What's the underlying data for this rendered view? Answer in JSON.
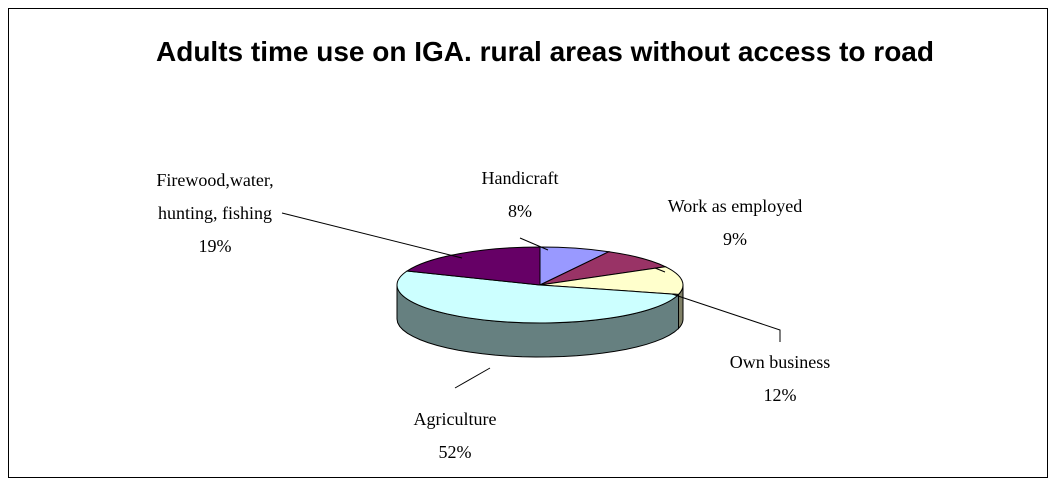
{
  "chart_data": {
    "type": "pie",
    "three_d": true,
    "title": "Adults time use on IGA. rural areas without access to road",
    "categories": [
      "Handicraft",
      "Work as employed",
      "Own business",
      "Agriculture",
      "Firewood,water, hunting, fishing"
    ],
    "values": [
      8,
      9,
      12,
      52,
      19
    ],
    "value_labels": [
      "8%",
      "9%",
      "12%",
      "52%",
      "19%"
    ],
    "colors": [
      "#9999ff",
      "#993366",
      "#ffffcc",
      "#ccffff",
      "#660066"
    ]
  }
}
